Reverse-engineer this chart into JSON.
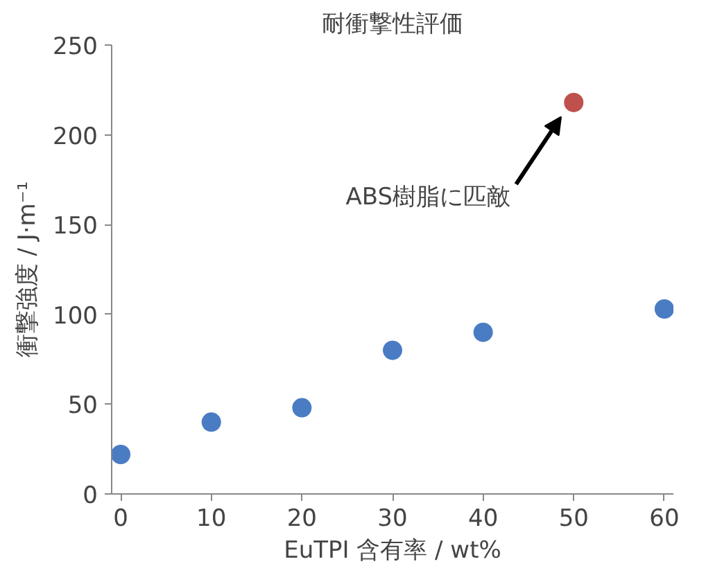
{
  "chart_data": {
    "type": "scatter",
    "title": "耐衝撃性評価",
    "xlabel": "EuTPI 含有率 / wt%",
    "ylabel": "衝撃強度 / J·m⁻¹",
    "x": [
      0,
      10,
      20,
      30,
      40,
      50,
      60
    ],
    "values": [
      22,
      40,
      48,
      80,
      90,
      218,
      103
    ],
    "colors": [
      "#4a7cc4",
      "#4a7cc4",
      "#4a7cc4",
      "#4a7cc4",
      "#4a7cc4",
      "#c0504d",
      "#4a7cc4"
    ],
    "xlim": [
      -1,
      61
    ],
    "ylim": [
      0,
      250
    ],
    "xticks": [
      0,
      10,
      20,
      30,
      40,
      50,
      60
    ],
    "yticks": [
      0,
      50,
      100,
      150,
      200,
      250
    ],
    "marker": "circle",
    "grid": false,
    "annotations": [
      "ABS樹脂に匹敵"
    ]
  }
}
